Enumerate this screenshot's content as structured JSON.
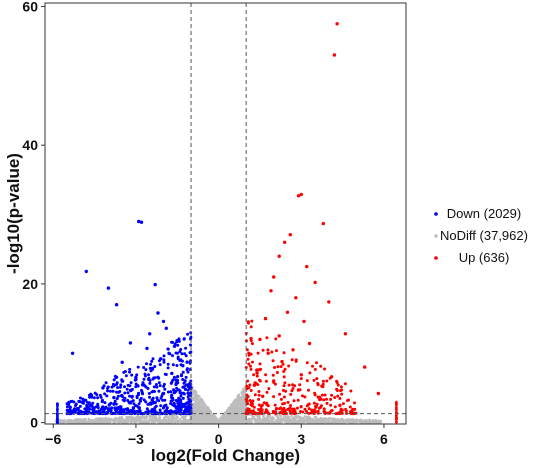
{
  "chart_data": {
    "type": "scatter",
    "title": "",
    "xlabel": "log2(Fold Change)",
    "ylabel": "-log10(p-value)",
    "xlim": [
      -6.3,
      6.8
    ],
    "ylim": [
      -0.2,
      60.5
    ],
    "x_ticks": [
      -6,
      -3,
      0,
      3,
      6
    ],
    "y_ticks": [
      0,
      20,
      40,
      60
    ],
    "threshold_lines": {
      "x": [
        -1,
        1
      ],
      "y": 1.3
    },
    "grid": false,
    "legend_position": "right",
    "series": [
      {
        "name": "Down (2029)",
        "color": "#0000ff",
        "points": [
          [
            -2.9,
            29.0
          ],
          [
            -2.8,
            28.9
          ],
          [
            -4.8,
            21.8
          ],
          [
            -2.3,
            19.9
          ],
          [
            -4.0,
            19.4
          ],
          [
            -3.7,
            17.0
          ],
          [
            -2.2,
            15.8
          ],
          [
            -2.0,
            14.6
          ],
          [
            -1.9,
            13.6
          ],
          [
            -2.5,
            12.8
          ],
          [
            -3.2,
            11.5
          ],
          [
            -1.6,
            11.0
          ],
          [
            -2.6,
            10.7
          ],
          [
            -1.8,
            10.0
          ],
          [
            -5.3,
            10.0
          ],
          [
            -2.1,
            9.2
          ],
          [
            -3.5,
            8.7
          ],
          [
            -1.3,
            8.2
          ],
          [
            -2.4,
            7.8
          ],
          [
            -1.7,
            7.1
          ],
          [
            -3.0,
            6.5
          ],
          [
            -1.5,
            6.1
          ],
          [
            -2.7,
            5.4
          ],
          [
            -4.2,
            5.0
          ],
          [
            -1.2,
            4.8
          ],
          [
            -2.0,
            4.2
          ],
          [
            -3.8,
            3.6
          ],
          [
            -1.4,
            3.3
          ],
          [
            -2.3,
            2.9
          ],
          [
            -4.6,
            2.4
          ],
          [
            -1.1,
            2.1
          ],
          [
            -3.3,
            1.8
          ],
          [
            -5.0,
            1.6
          ],
          [
            -1.9,
            1.5
          ]
        ]
      },
      {
        "name": "NoDiff (37,962)",
        "color": "#bdbdbd",
        "points": []
      },
      {
        "name": "Up (636)",
        "color": "#ff0000",
        "points": [
          [
            4.3,
            57.5
          ],
          [
            4.2,
            53.0
          ],
          [
            3.0,
            32.9
          ],
          [
            2.9,
            32.7
          ],
          [
            3.8,
            28.7
          ],
          [
            2.6,
            27.1
          ],
          [
            2.4,
            26.0
          ],
          [
            2.2,
            24.0
          ],
          [
            3.2,
            22.5
          ],
          [
            2.0,
            21.0
          ],
          [
            3.5,
            20.2
          ],
          [
            1.9,
            19.0
          ],
          [
            2.8,
            18.0
          ],
          [
            4.0,
            17.4
          ],
          [
            2.5,
            15.9
          ],
          [
            1.7,
            15.0
          ],
          [
            3.1,
            14.6
          ],
          [
            4.6,
            12.8
          ],
          [
            2.2,
            12.5
          ],
          [
            1.5,
            12.0
          ],
          [
            3.3,
            11.4
          ],
          [
            2.7,
            10.5
          ],
          [
            1.8,
            10.0
          ],
          [
            2.3,
            8.8
          ],
          [
            5.3,
            8.0
          ],
          [
            1.4,
            7.6
          ],
          [
            3.0,
            6.9
          ],
          [
            4.1,
            6.6
          ],
          [
            2.0,
            6.0
          ],
          [
            1.3,
            5.4
          ],
          [
            2.9,
            4.7
          ],
          [
            5.8,
            4.2
          ],
          [
            1.6,
            3.8
          ],
          [
            3.7,
            3.4
          ],
          [
            1.2,
            2.9
          ],
          [
            4.4,
            2.5
          ],
          [
            2.1,
            2.0
          ],
          [
            1.1,
            1.6
          ],
          [
            3.4,
            1.5
          ]
        ]
      }
    ]
  }
}
